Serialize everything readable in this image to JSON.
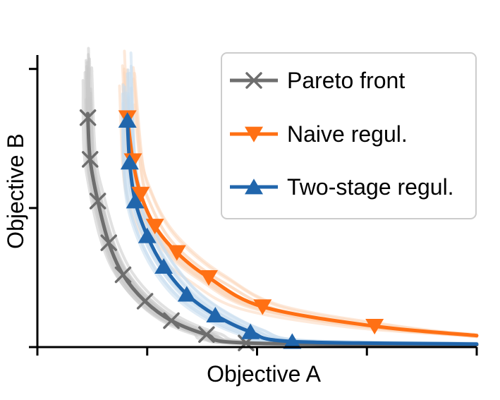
{
  "chart_data": {
    "type": "line",
    "xlabel": "Objective A",
    "ylabel": "Objective B",
    "xlim": [
      0,
      4
    ],
    "ylim": [
      0,
      2.1
    ],
    "grid": false,
    "tick_labels": false,
    "legend_placement": "top-right",
    "colors": {
      "pareto": "#6e6e6e",
      "naive": "#ff7014",
      "twostage": "#2166ac",
      "pareto_shadow": "#c8c8c8",
      "naive_shadow": "#fcd7bc",
      "twostage_shadow": "#c6dcef"
    },
    "series": [
      {
        "name": "Pareto front",
        "marker": "x",
        "color": "#6e6e6e",
        "points": [
          [
            0.46,
            1.65
          ],
          [
            0.48,
            1.35
          ],
          [
            0.55,
            1.05
          ],
          [
            0.65,
            0.75
          ],
          [
            0.78,
            0.52
          ],
          [
            0.98,
            0.33
          ],
          [
            1.22,
            0.19
          ],
          [
            1.54,
            0.09
          ],
          [
            1.9,
            0.03
          ]
        ]
      },
      {
        "name": "Naive regul.",
        "marker": "triangle-down",
        "color": "#ff7014",
        "points": [
          [
            0.82,
            1.65
          ],
          [
            0.87,
            1.34
          ],
          [
            0.94,
            1.1
          ],
          [
            1.07,
            0.87
          ],
          [
            1.27,
            0.68
          ],
          [
            1.56,
            0.5
          ],
          [
            2.05,
            0.29
          ],
          [
            3.07,
            0.15
          ]
        ]
      },
      {
        "name": "Two-stage regul.",
        "marker": "triangle-up",
        "color": "#2166ac",
        "points": [
          [
            0.82,
            1.63
          ],
          [
            0.84,
            1.33
          ],
          [
            0.89,
            1.05
          ],
          [
            1.0,
            0.8
          ],
          [
            1.15,
            0.58
          ],
          [
            1.36,
            0.38
          ],
          [
            1.62,
            0.23
          ],
          [
            1.94,
            0.11
          ],
          [
            2.32,
            0.04
          ]
        ]
      }
    ]
  }
}
